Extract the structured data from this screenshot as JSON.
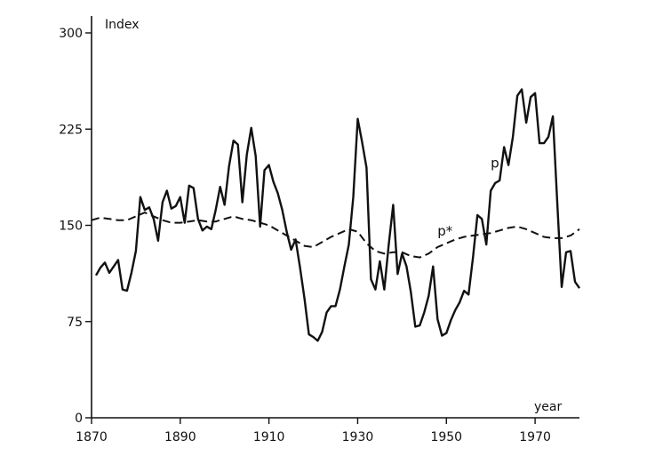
{
  "chart_data": {
    "type": "line",
    "ylabel": "Index",
    "xlabel": "year",
    "xlim": [
      1870,
      1980
    ],
    "ylim": [
      0,
      300
    ],
    "x_ticks": [
      1870,
      1890,
      1910,
      1930,
      1950,
      1970
    ],
    "y_ticks": [
      0,
      75,
      150,
      225,
      300
    ],
    "series": [
      {
        "name": "p",
        "style": "solid",
        "x": [
          1871,
          1872,
          1873,
          1874,
          1875,
          1876,
          1877,
          1878,
          1879,
          1880,
          1881,
          1882,
          1883,
          1884,
          1885,
          1886,
          1887,
          1888,
          1889,
          1890,
          1891,
          1892,
          1893,
          1894,
          1895,
          1896,
          1897,
          1898,
          1899,
          1900,
          1901,
          1902,
          1903,
          1904,
          1905,
          1906,
          1907,
          1908,
          1909,
          1910,
          1911,
          1912,
          1913,
          1914,
          1915,
          1916,
          1917,
          1918,
          1919,
          1920,
          1921,
          1922,
          1923,
          1924,
          1925,
          1926,
          1927,
          1928,
          1929,
          1930,
          1931,
          1932,
          1933,
          1934,
          1935,
          1936,
          1937,
          1938,
          1939,
          1940,
          1941,
          1942,
          1943,
          1944,
          1945,
          1946,
          1947,
          1948,
          1949,
          1950,
          1951,
          1952,
          1953,
          1954,
          1955,
          1956,
          1957,
          1958,
          1959,
          1960,
          1961,
          1962,
          1963,
          1964,
          1965,
          1966,
          1967,
          1968,
          1969,
          1970,
          1971,
          1972,
          1973,
          1974,
          1975,
          1976,
          1977,
          1978,
          1979,
          1980
        ],
        "y": [
          111,
          117,
          121,
          113,
          118,
          123,
          100,
          99,
          113,
          130,
          172,
          162,
          164,
          155,
          138,
          168,
          177,
          163,
          165,
          172,
          152,
          181,
          179,
          155,
          146,
          149,
          147,
          162,
          180,
          166,
          196,
          216,
          213,
          168,
          205,
          226,
          204,
          149,
          193,
          197,
          184,
          175,
          162,
          145,
          131,
          139,
          117,
          93,
          65,
          63,
          60,
          67,
          82,
          87,
          87,
          100,
          118,
          135,
          172,
          233,
          215,
          195,
          108,
          100,
          122,
          100,
          135,
          166,
          112,
          128,
          118,
          98,
          71,
          72,
          82,
          95,
          118,
          77,
          64,
          66,
          76,
          84,
          90,
          99,
          96,
          125,
          158,
          155,
          135,
          177,
          183,
          185,
          211,
          197,
          219,
          251,
          256,
          230,
          250,
          253,
          214,
          214,
          219,
          235,
          168,
          102,
          129,
          130,
          106,
          101
        ]
      },
      {
        "name": "p*",
        "style": "dashed",
        "x": [
          1870,
          1872,
          1874,
          1876,
          1878,
          1880,
          1882,
          1884,
          1886,
          1888,
          1890,
          1892,
          1894,
          1896,
          1898,
          1900,
          1902,
          1904,
          1906,
          1908,
          1910,
          1912,
          1914,
          1916,
          1918,
          1920,
          1922,
          1924,
          1926,
          1928,
          1930,
          1932,
          1934,
          1936,
          1938,
          1940,
          1942,
          1944,
          1946,
          1948,
          1950,
          1952,
          1954,
          1956,
          1958,
          1960,
          1962,
          1964,
          1966,
          1968,
          1970,
          1972,
          1974,
          1976,
          1978,
          1980
        ],
        "y": [
          154,
          156,
          155,
          154,
          154,
          157,
          160,
          157,
          154,
          152,
          152,
          153,
          154,
          153,
          153,
          155,
          157,
          155,
          154,
          152,
          150,
          146,
          142,
          138,
          134,
          133,
          137,
          141,
          144,
          147,
          145,
          136,
          130,
          128,
          129,
          129,
          126,
          125,
          128,
          133,
          136,
          139,
          141,
          142,
          143,
          144,
          146,
          148,
          149,
          147,
          144,
          141,
          140,
          140,
          142,
          147
        ]
      }
    ],
    "annotations": [
      {
        "text": "p",
        "series": "p",
        "at": [
          1960,
          195
        ]
      },
      {
        "text": "p*",
        "series": "p*",
        "at": [
          1948,
          142
        ]
      }
    ]
  }
}
